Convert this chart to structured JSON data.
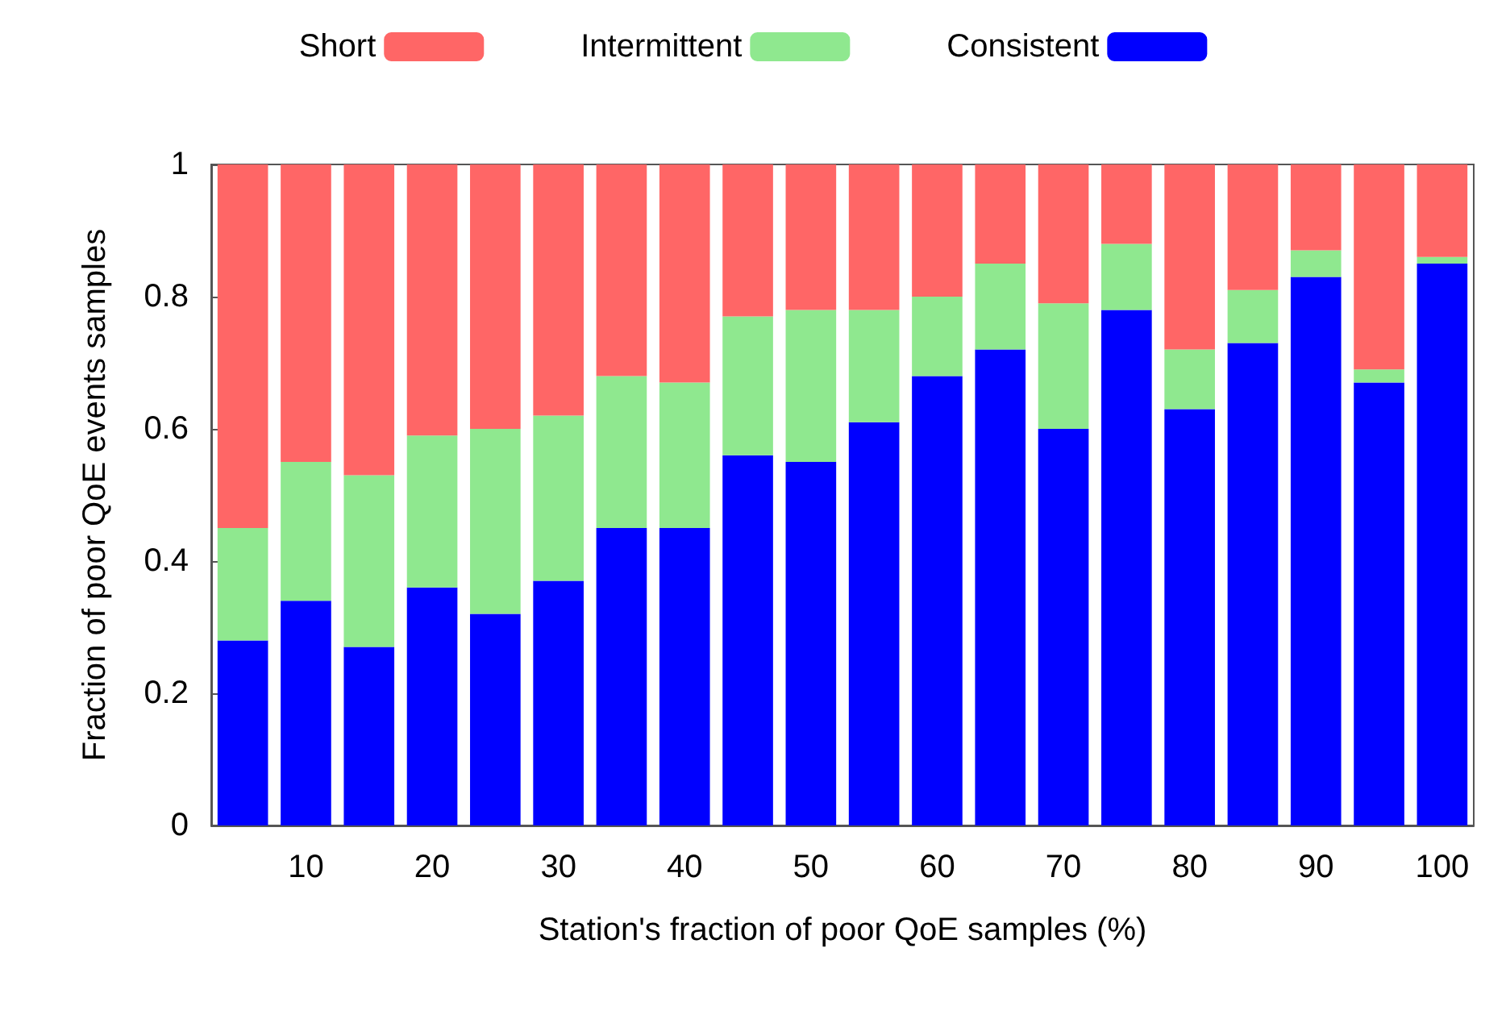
{
  "chart_data": {
    "type": "bar",
    "stacked": true,
    "xlabel": "Station's fraction of poor QoE samples (%)",
    "ylabel": "Fraction of poor QoE events samples",
    "categories": [
      null,
      "10",
      null,
      "20",
      null,
      "30",
      null,
      "40",
      null,
      "50",
      null,
      "60",
      null,
      "70",
      null,
      "80",
      null,
      "90",
      null,
      "100"
    ],
    "series": [
      {
        "name": "Consistent",
        "color": "#0000ff",
        "values": [
          0.28,
          0.34,
          0.27,
          0.36,
          0.32,
          0.37,
          0.45,
          0.45,
          0.56,
          0.55,
          0.61,
          0.68,
          0.72,
          0.6,
          0.78,
          0.63,
          0.73,
          0.83,
          0.67,
          0.85
        ]
      },
      {
        "name": "Intermittent",
        "color": "#8fe88f",
        "values": [
          0.17,
          0.21,
          0.26,
          0.23,
          0.28,
          0.25,
          0.23,
          0.22,
          0.21,
          0.23,
          0.17,
          0.12,
          0.13,
          0.19,
          0.1,
          0.09,
          0.08,
          0.04,
          0.02,
          0.01
        ]
      },
      {
        "name": "Short",
        "color": "#ff6666",
        "values": [
          0.55,
          0.45,
          0.47,
          0.41,
          0.4,
          0.38,
          0.32,
          0.33,
          0.23,
          0.22,
          0.22,
          0.2,
          0.15,
          0.21,
          0.12,
          0.28,
          0.19,
          0.13,
          0.31,
          0.14
        ]
      }
    ],
    "ylim": [
      0,
      1
    ],
    "yticks": [
      0,
      0.2,
      0.4,
      0.6,
      0.8,
      1
    ],
    "grid": false,
    "legend": "top"
  }
}
